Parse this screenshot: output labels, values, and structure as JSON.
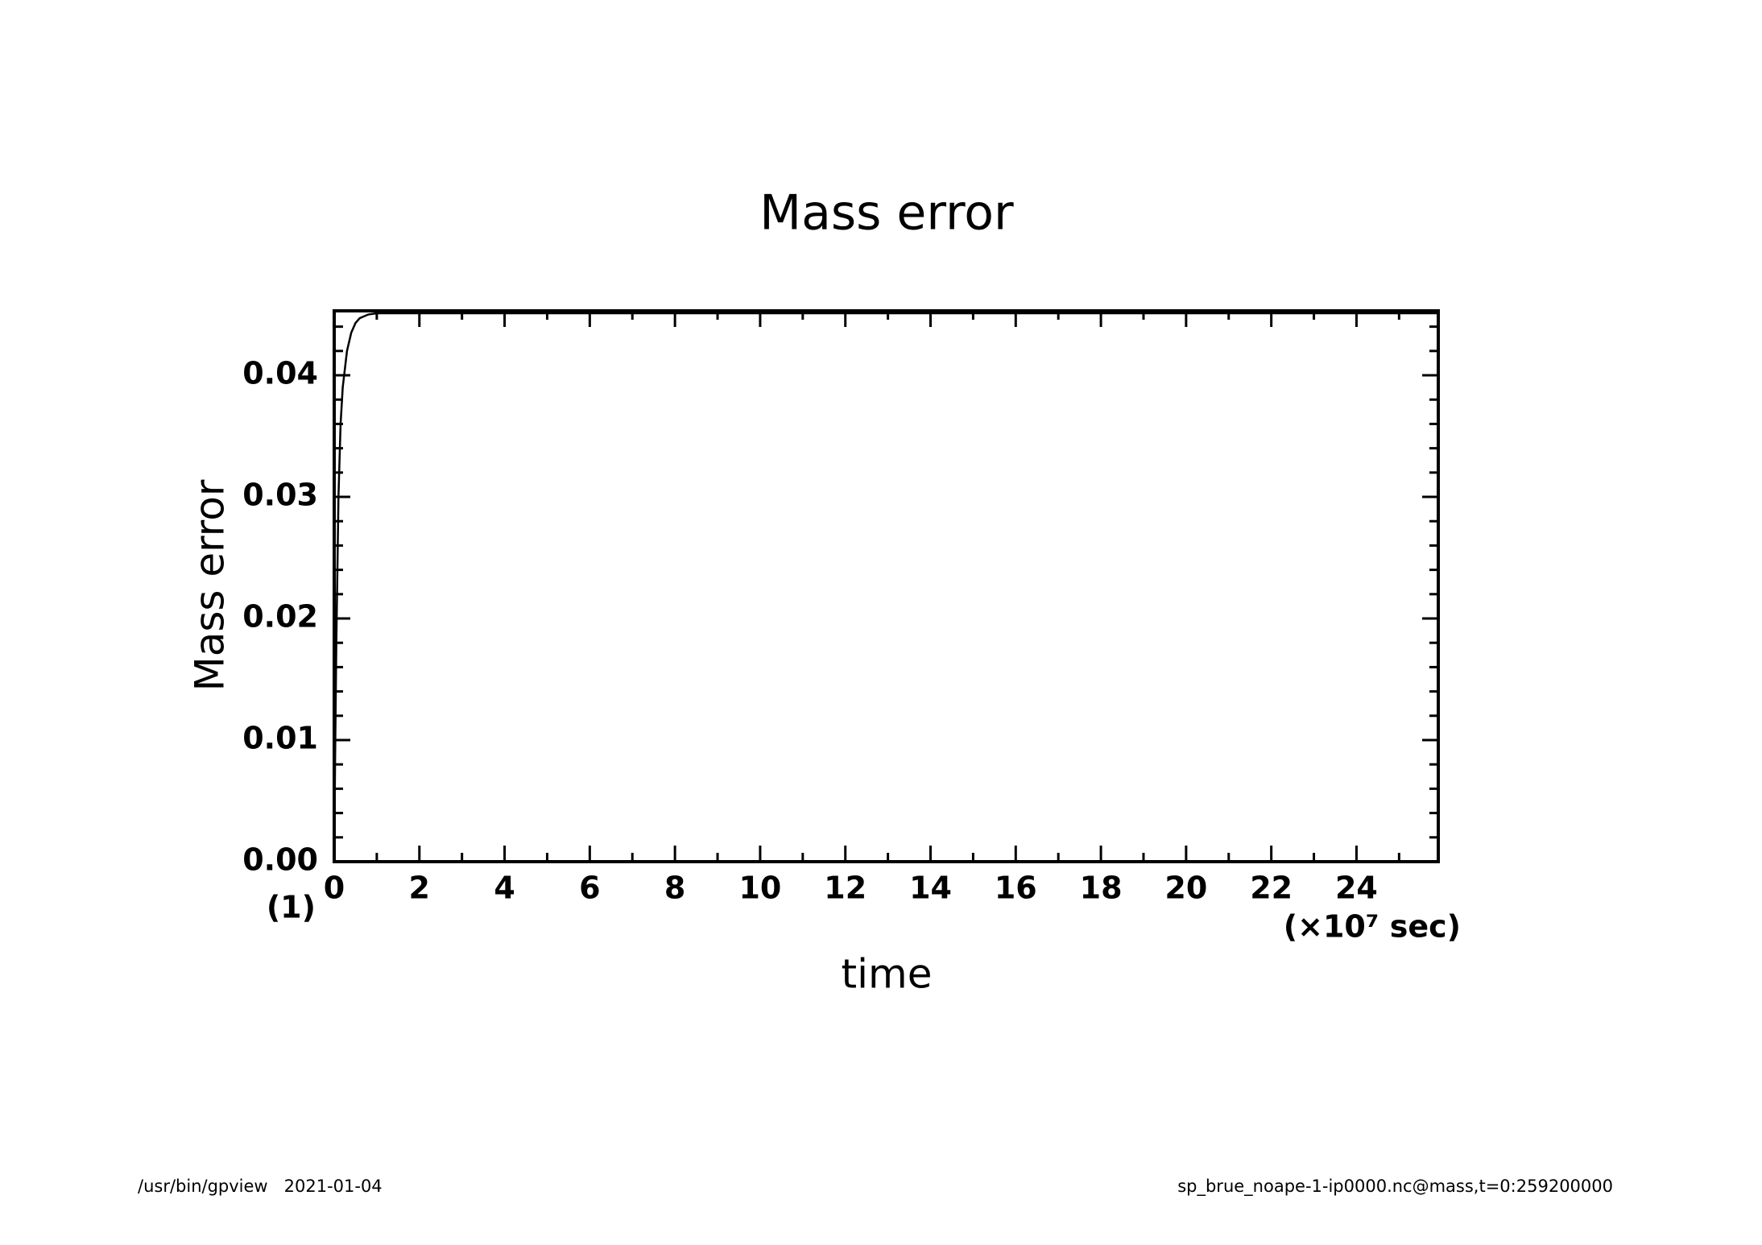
{
  "chart_data": {
    "type": "line",
    "title": "Mass error",
    "x_label": "time",
    "y_label": "Mass error",
    "x_unit": "(×10⁷ sec)",
    "y_unit": "(1)",
    "x": [
      0,
      0.02,
      0.05,
      0.1,
      0.15,
      0.2,
      0.3,
      0.4,
      0.5,
      0.6,
      0.8,
      1,
      2,
      5,
      10,
      15,
      20,
      25.92
    ],
    "series": [
      {
        "name": "Mass error",
        "color": "#000000",
        "values": [
          0,
          0.008,
          0.018,
          0.03,
          0.036,
          0.039,
          0.042,
          0.0435,
          0.0443,
          0.0447,
          0.045,
          0.0451,
          0.0451,
          0.0451,
          0.0451,
          0.0451,
          0.0451,
          0.0451
        ]
      }
    ],
    "xlim": [
      0,
      25.92
    ],
    "ylim": [
      0,
      0.0453
    ],
    "xticks": [
      0,
      2,
      4,
      6,
      8,
      10,
      12,
      14,
      16,
      18,
      20,
      22,
      24
    ],
    "xminorticks": [
      1,
      3,
      5,
      7,
      9,
      11,
      13,
      15,
      17,
      19,
      21,
      23,
      25
    ],
    "yticks": [
      {
        "value": 0,
        "label": "0.00"
      },
      0.01,
      0.02,
      0.03,
      0.04
    ],
    "yminorticks": [
      0.002,
      0.004,
      0.006,
      0.008,
      0.012,
      0.014,
      0.016,
      0.018,
      0.022,
      0.024,
      0.026,
      0.028,
      0.032,
      0.034,
      0.036,
      0.038,
      0.042,
      0.044
    ],
    "grid": false
  },
  "footer": {
    "left": "/usr/bin/gpview   2021-01-04",
    "right": "sp_brue_noape-1-ip0000.nc@mass,t=0:259200000"
  }
}
